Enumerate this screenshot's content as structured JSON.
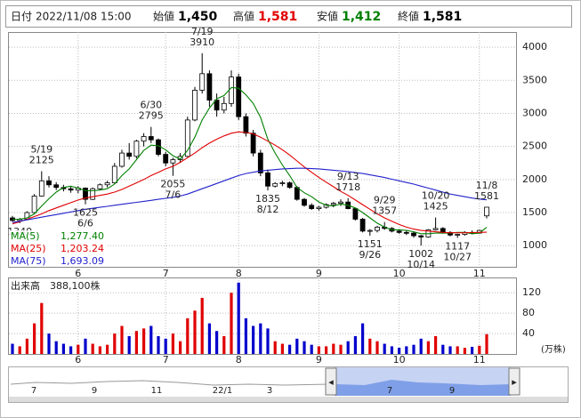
{
  "header": {
    "date_label": "日付",
    "datetime": "2022/11/08 15:00",
    "fields": [
      {
        "name": "始値",
        "value": {
          "value": 1450,
          "label": "1,450"
        },
        "color": "#000000"
      },
      {
        "name": "高値",
        "value": {
          "value": 1581,
          "label": "1,581"
        },
        "color": "#e00000"
      },
      {
        "name": "安値",
        "value": {
          "value": 1412,
          "label": "1,412"
        },
        "color": "#008000"
      },
      {
        "name": "終値",
        "value": {
          "value": 1581,
          "label": "1,581"
        },
        "color": "#000000"
      }
    ]
  },
  "chart_data": {
    "type": "candlestick",
    "categories": [
      null,
      null,
      null,
      null,
      null,
      null,
      null,
      null,
      null,
      "6",
      null,
      null,
      null,
      null,
      null,
      null,
      null,
      null,
      null,
      null,
      null,
      "7",
      null,
      null,
      null,
      null,
      null,
      null,
      null,
      null,
      null,
      "8",
      null,
      null,
      null,
      null,
      null,
      null,
      null,
      null,
      null,
      null,
      "9",
      null,
      null,
      null,
      null,
      null,
      null,
      null,
      null,
      null,
      null,
      "10",
      null,
      null,
      null,
      null,
      null,
      null,
      null,
      null,
      null,
      null,
      "11",
      null
    ],
    "ohlc": [
      [
        1420,
        1450,
        1360,
        1380
      ],
      [
        1380,
        1420,
        1340,
        1400
      ],
      [
        1400,
        1520,
        1390,
        1500
      ],
      [
        1500,
        1780,
        1490,
        1750
      ],
      [
        1750,
        2125,
        1740,
        1980
      ],
      [
        1980,
        2050,
        1880,
        1920
      ],
      [
        1920,
        1960,
        1840,
        1880
      ],
      [
        1880,
        1920,
        1820,
        1860
      ],
      [
        1860,
        1900,
        1800,
        1840
      ],
      [
        1840,
        1900,
        1790,
        1870
      ],
      [
        1870,
        1880,
        1625,
        1700
      ],
      [
        1700,
        1880,
        1690,
        1860
      ],
      [
        1860,
        1940,
        1840,
        1920
      ],
      [
        1920,
        1980,
        1880,
        1950
      ],
      [
        1950,
        2250,
        1940,
        2200
      ],
      [
        2200,
        2450,
        2180,
        2400
      ],
      [
        2400,
        2550,
        2300,
        2350
      ],
      [
        2350,
        2600,
        2320,
        2580
      ],
      [
        2580,
        2700,
        2500,
        2650
      ],
      [
        2650,
        2795,
        2550,
        2600
      ],
      [
        2600,
        2620,
        2350,
        2380
      ],
      [
        2380,
        2420,
        2200,
        2250
      ],
      [
        2250,
        2330,
        2055,
        2300
      ],
      [
        2300,
        2400,
        2250,
        2350
      ],
      [
        2350,
        2950,
        2340,
        2900
      ],
      [
        2900,
        3400,
        2880,
        3350
      ],
      [
        3350,
        3910,
        3300,
        3600
      ],
      [
        3600,
        3650,
        3100,
        3200
      ],
      [
        3200,
        3300,
        2950,
        3050
      ],
      [
        3050,
        3250,
        3000,
        3150
      ],
      [
        3150,
        3650,
        3100,
        3550
      ],
      [
        3550,
        3600,
        2900,
        2950
      ],
      [
        2950,
        3000,
        2650,
        2700
      ],
      [
        2700,
        2750,
        2350,
        2400
      ],
      [
        2400,
        2450,
        2050,
        2100
      ],
      [
        2100,
        2150,
        1835,
        1900
      ],
      [
        1900,
        1960,
        1880,
        1940
      ],
      [
        1940,
        1980,
        1900,
        1950
      ],
      [
        1950,
        1970,
        1860,
        1880
      ],
      [
        1880,
        1900,
        1680,
        1700
      ],
      [
        1700,
        1720,
        1590,
        1610
      ],
      [
        1610,
        1640,
        1540,
        1560
      ],
      [
        1560,
        1600,
        1530,
        1580
      ],
      [
        1580,
        1640,
        1560,
        1620
      ],
      [
        1620,
        1660,
        1580,
        1640
      ],
      [
        1640,
        1700,
        1600,
        1660
      ],
      [
        1660,
        1718,
        1550,
        1560
      ],
      [
        1560,
        1570,
        1380,
        1400
      ],
      [
        1400,
        1420,
        1200,
        1220
      ],
      [
        1220,
        1250,
        1151,
        1230
      ],
      [
        1230,
        1300,
        1200,
        1280
      ],
      [
        1280,
        1357,
        1240,
        1260
      ],
      [
        1260,
        1280,
        1200,
        1220
      ],
      [
        1220,
        1250,
        1180,
        1200
      ],
      [
        1200,
        1230,
        1160,
        1190
      ],
      [
        1190,
        1210,
        1120,
        1150
      ],
      [
        1150,
        1160,
        1002,
        1130
      ],
      [
        1130,
        1250,
        1120,
        1240
      ],
      [
        1240,
        1425,
        1230,
        1260
      ],
      [
        1260,
        1280,
        1180,
        1200
      ],
      [
        1200,
        1220,
        1140,
        1160
      ],
      [
        1160,
        1180,
        1117,
        1170
      ],
      [
        1170,
        1220,
        1150,
        1200
      ],
      [
        1200,
        1230,
        1170,
        1190
      ],
      [
        1190,
        1240,
        1180,
        1230
      ],
      [
        1450,
        1581,
        1412,
        1581
      ]
    ],
    "up_color": "#ffffff",
    "down_color": "#000000",
    "ylim": [
      680,
      4230
    ],
    "yticks": [
      1000,
      1500,
      2000,
      2500,
      3000,
      3500,
      4000
    ],
    "grid": true,
    "series": [
      {
        "name": "MA(5)",
        "color": "#008000",
        "values": [
          1400,
          1400,
          1420,
          1480,
          1600,
          1710,
          1810,
          1880,
          1900,
          1870,
          1830,
          1830,
          1840,
          1860,
          1930,
          2060,
          2160,
          2300,
          2440,
          2520,
          2510,
          2450,
          2360,
          2310,
          2440,
          2640,
          2900,
          3080,
          3220,
          3270,
          3390,
          3380,
          3280,
          3150,
          2940,
          2610,
          2400,
          2220,
          2060,
          1880,
          1800,
          1740,
          1660,
          1610,
          1600,
          1630,
          1610,
          1570,
          1500,
          1420,
          1340,
          1280,
          1240,
          1240,
          1230,
          1210,
          1180,
          1180,
          1190,
          1190,
          1190,
          1200,
          1200,
          1180,
          1190,
          1277.4
        ],
        "value_labels": [
          null,
          null,
          null,
          null,
          null,
          null,
          null,
          null,
          null,
          null,
          null,
          null,
          null,
          null,
          null,
          null,
          null,
          null,
          null,
          null,
          null,
          null,
          null,
          null,
          null,
          null,
          null,
          null,
          null,
          null,
          null,
          null,
          null,
          null,
          null,
          null,
          null,
          null,
          null,
          null,
          null,
          null,
          null,
          null,
          null,
          null,
          null,
          null,
          null,
          null,
          null,
          null,
          null,
          null,
          null,
          null,
          null,
          null,
          null,
          null,
          null,
          null,
          null,
          null,
          null,
          "1,277.40"
        ]
      },
      {
        "name": "MA(25)",
        "color": "#e00000",
        "values": [
          1330,
          1360,
          1400,
          1440,
          1480,
          1530,
          1570,
          1610,
          1650,
          1690,
          1720,
          1740,
          1760,
          1780,
          1810,
          1850,
          1900,
          1950,
          2000,
          2060,
          2110,
          2160,
          2200,
          2260,
          2330,
          2400,
          2480,
          2550,
          2610,
          2660,
          2700,
          2720,
          2710,
          2690,
          2640,
          2580,
          2520,
          2450,
          2370,
          2280,
          2190,
          2110,
          2030,
          1960,
          1890,
          1820,
          1760,
          1690,
          1620,
          1550,
          1480,
          1420,
          1370,
          1320,
          1280,
          1250,
          1230,
          1220,
          1210,
          1200,
          1195,
          1195,
          1195,
          1198,
          1200,
          1203.24
        ],
        "value_labels": [
          null,
          null,
          null,
          null,
          null,
          null,
          null,
          null,
          null,
          null,
          null,
          null,
          null,
          null,
          null,
          null,
          null,
          null,
          null,
          null,
          null,
          null,
          null,
          null,
          null,
          null,
          null,
          null,
          null,
          null,
          null,
          null,
          null,
          null,
          null,
          null,
          null,
          null,
          null,
          null,
          null,
          null,
          null,
          null,
          null,
          null,
          null,
          null,
          null,
          null,
          null,
          null,
          null,
          null,
          null,
          null,
          null,
          null,
          null,
          null,
          null,
          null,
          null,
          null,
          null,
          "1,203.24"
        ]
      },
      {
        "name": "MA(75)",
        "color": "#2222cc",
        "values": [
          1350,
          1370,
          1390,
          1410,
          1430,
          1450,
          1470,
          1490,
          1510,
          1530,
          1550,
          1565,
          1580,
          1595,
          1610,
          1625,
          1640,
          1655,
          1670,
          1685,
          1700,
          1715,
          1730,
          1750,
          1780,
          1820,
          1860,
          1900,
          1940,
          1980,
          2020,
          2060,
          2090,
          2110,
          2130,
          2140,
          2150,
          2160,
          2165,
          2170,
          2170,
          2165,
          2160,
          2150,
          2140,
          2130,
          2120,
          2105,
          2090,
          2070,
          2050,
          2030,
          2005,
          1980,
          1955,
          1930,
          1900,
          1870,
          1840,
          1810,
          1780,
          1760,
          1740,
          1720,
          1705,
          1693.09
        ],
        "value_labels": [
          null,
          null,
          null,
          null,
          null,
          null,
          null,
          null,
          null,
          null,
          null,
          null,
          null,
          null,
          null,
          null,
          null,
          null,
          null,
          null,
          null,
          null,
          null,
          null,
          null,
          null,
          null,
          null,
          null,
          null,
          null,
          null,
          null,
          null,
          null,
          null,
          null,
          null,
          null,
          null,
          null,
          null,
          null,
          null,
          null,
          null,
          null,
          null,
          null,
          null,
          null,
          null,
          null,
          null,
          null,
          null,
          null,
          null,
          null,
          null,
          null,
          null,
          null,
          null,
          null,
          "1,693.09"
        ]
      }
    ],
    "annotations": [
      {
        "price": 1340
      },
      {
        "date": "5/19",
        "price": 2125
      },
      {
        "price": 1625,
        "date": "6/6"
      },
      {
        "date": "6/30",
        "price": 2795
      },
      {
        "price": 2055,
        "date": "7/6"
      },
      {
        "date": "7/19",
        "price": 3910
      },
      {
        "price": 1835,
        "date": "8/12"
      },
      {
        "date": "9/13",
        "price": 1718
      },
      {
        "price": 1151,
        "date": "9/26"
      },
      {
        "date": "9/29",
        "price": 1357
      },
      {
        "price": 1002,
        "date": "10/14"
      },
      {
        "date": "10/20",
        "price": 1425
      },
      {
        "price": 1117,
        "date": "10/27"
      },
      {
        "date": "11/8",
        "price": 1581
      }
    ],
    "volume": {
      "title": "出来高",
      "unit": "(万株)",
      "ylim": [
        0,
        150
      ],
      "yticks": [
        40,
        80,
        120
      ],
      "up_color": "#e00000",
      "down_color": "#0000cc",
      "values": [
        20,
        15,
        30,
        60,
        100,
        40,
        25,
        20,
        15,
        18,
        30,
        20,
        15,
        18,
        40,
        55,
        35,
        45,
        50,
        55,
        35,
        30,
        40,
        25,
        70,
        85,
        110,
        60,
        45,
        35,
        120,
        140,
        70,
        55,
        60,
        50,
        25,
        20,
        18,
        30,
        25,
        18,
        15,
        15,
        20,
        18,
        25,
        35,
        60,
        30,
        25,
        20,
        15,
        12,
        15,
        18,
        30,
        25,
        35,
        18,
        15,
        15,
        12,
        14,
        16,
        38.81
      ],
      "value_labels": [
        null,
        null,
        null,
        null,
        null,
        null,
        null,
        null,
        null,
        null,
        null,
        null,
        null,
        null,
        null,
        null,
        null,
        null,
        null,
        null,
        null,
        null,
        null,
        null,
        null,
        null,
        null,
        null,
        null,
        null,
        null,
        null,
        null,
        null,
        null,
        null,
        null,
        null,
        null,
        null,
        null,
        null,
        null,
        null,
        null,
        null,
        null,
        null,
        null,
        null,
        null,
        null,
        null,
        null,
        null,
        null,
        null,
        null,
        null,
        null,
        null,
        null,
        null,
        null,
        null,
        "388,100株"
      ]
    }
  },
  "navigator": {
    "labels": [
      "7",
      "9",
      "11",
      "22/1",
      "3",
      "7",
      "9"
    ]
  }
}
